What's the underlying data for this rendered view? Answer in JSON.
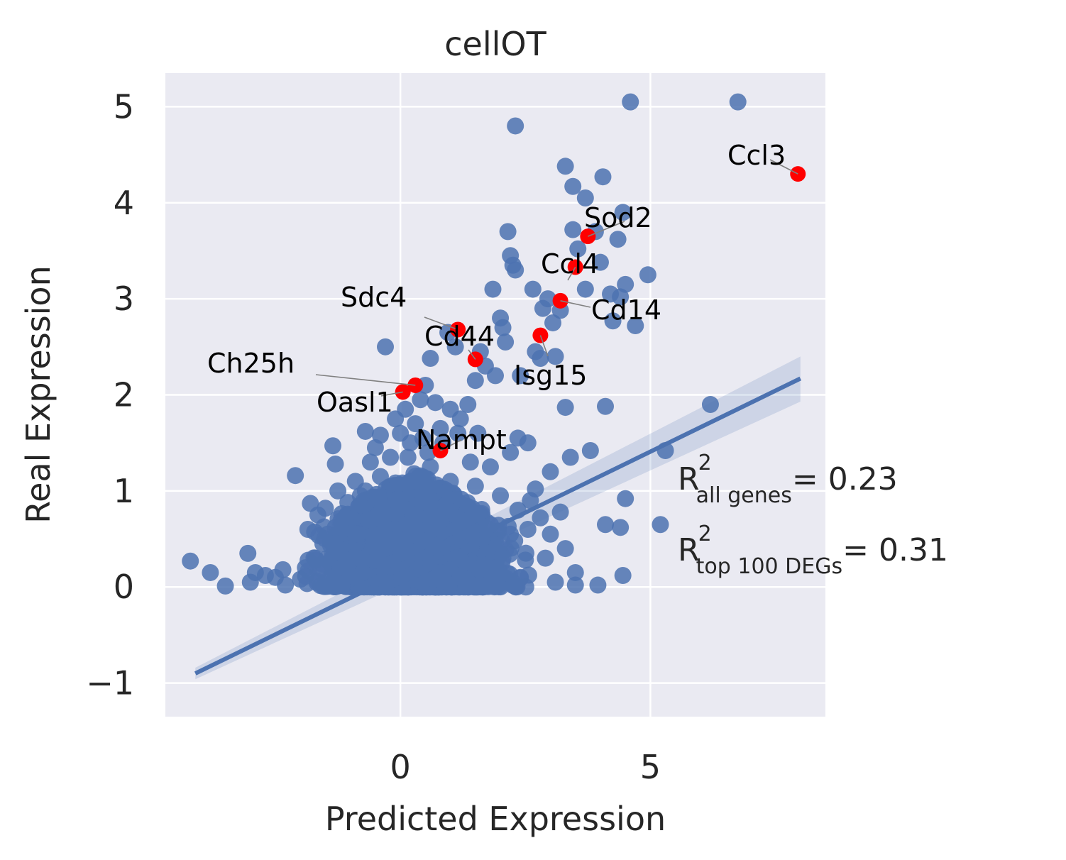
{
  "chart_data": {
    "type": "scatter",
    "title": "cellOT",
    "xlabel": "Predicted Expression",
    "ylabel": "Real Expression",
    "xlim": [
      -4.7,
      8.5
    ],
    "ylim": [
      -1.35,
      5.35
    ],
    "xticks": [
      0,
      5
    ],
    "yticks": [
      -1,
      0,
      1,
      2,
      3,
      4,
      5
    ],
    "xtick_labels": [
      "0",
      "5"
    ],
    "ytick_labels": [
      "−1",
      "0",
      "1",
      "2",
      "3",
      "4",
      "5"
    ],
    "grid": true,
    "colors": {
      "background": "#EAEAF2",
      "grid": "#FFFFFF",
      "points": "#4C72B0",
      "highlight": "#FF0000",
      "arrow": "#808080"
    },
    "regression": {
      "x": [
        -4.1,
        8.0
      ],
      "y": [
        -0.9,
        2.17
      ],
      "ci_upper_end": 2.4,
      "ci_lower_end": 1.93
    },
    "points": [
      [
        -4.2,
        0.27
      ],
      [
        -3.8,
        0.15
      ],
      [
        -3.5,
        0.01
      ],
      [
        -3.05,
        0.35
      ],
      [
        -3.0,
        0.05
      ],
      [
        -2.9,
        0.15
      ],
      [
        -2.7,
        0.12
      ],
      [
        -2.5,
        0.1
      ],
      [
        -2.35,
        0.18
      ],
      [
        -2.3,
        0.02
      ],
      [
        -2.1,
        1.16
      ],
      [
        -2.0,
        0.08
      ],
      [
        -1.9,
        0.2
      ],
      [
        -1.85,
        0.6
      ],
      [
        -1.8,
        0.87
      ],
      [
        -1.7,
        0.3
      ],
      [
        -1.65,
        0.75
      ],
      [
        -1.55,
        0.45
      ],
      [
        -1.5,
        0.82
      ],
      [
        -1.45,
        0.55
      ],
      [
        -1.4,
        0.1
      ],
      [
        -1.35,
        0.3
      ],
      [
        -1.3,
        0.62
      ],
      [
        -1.25,
        1.0
      ],
      [
        -1.3,
        1.28
      ],
      [
        -1.35,
        1.47
      ],
      [
        -1.2,
        0.2
      ],
      [
        -1.15,
        0.38
      ],
      [
        -1.1,
        0.72
      ],
      [
        -1.05,
        0.88
      ],
      [
        -1.0,
        0.12
      ],
      [
        -0.9,
        1.1
      ],
      [
        -0.85,
        0.55
      ],
      [
        -0.9,
        0.32
      ],
      [
        -0.8,
        0.95
      ],
      [
        -0.75,
        0.15
      ],
      [
        -0.7,
        1.62
      ],
      [
        -0.65,
        0.7
      ],
      [
        -0.6,
        1.3
      ],
      [
        -0.55,
        0.42
      ],
      [
        -0.5,
        1.45
      ],
      [
        -0.4,
        1.58
      ],
      [
        -0.35,
        0.8
      ],
      [
        -0.3,
        2.5
      ],
      [
        -0.2,
        1.35
      ],
      [
        -0.15,
        0.25
      ],
      [
        -0.1,
        1.75
      ],
      [
        0.0,
        1.6
      ],
      [
        0.1,
        1.85
      ],
      [
        0.2,
        1.5
      ],
      [
        0.3,
        1.7
      ],
      [
        0.4,
        1.95
      ],
      [
        0.5,
        2.1
      ],
      [
        0.55,
        1.4
      ],
      [
        0.6,
        2.38
      ],
      [
        0.7,
        1.92
      ],
      [
        0.8,
        1.65
      ],
      [
        0.95,
        2.65
      ],
      [
        1.0,
        1.85
      ],
      [
        1.1,
        2.5
      ],
      [
        1.2,
        1.75
      ],
      [
        1.35,
        1.9
      ],
      [
        1.5,
        2.15
      ],
      [
        1.6,
        2.45
      ],
      [
        1.7,
        2.3
      ],
      [
        1.85,
        3.1
      ],
      [
        1.9,
        2.2
      ],
      [
        2.0,
        2.8
      ],
      [
        2.05,
        2.7
      ],
      [
        2.1,
        2.55
      ],
      [
        2.15,
        3.7
      ],
      [
        2.2,
        3.45
      ],
      [
        2.25,
        3.35
      ],
      [
        2.3,
        3.3
      ],
      [
        2.4,
        2.2
      ],
      [
        2.3,
        4.8
      ],
      [
        2.35,
        1.55
      ],
      [
        2.55,
        1.5
      ],
      [
        2.65,
        3.1
      ],
      [
        2.7,
        2.45
      ],
      [
        2.8,
        2.38
      ],
      [
        2.85,
        2.9
      ],
      [
        2.95,
        3.0
      ],
      [
        3.05,
        2.75
      ],
      [
        3.1,
        2.4
      ],
      [
        3.2,
        2.88
      ],
      [
        3.3,
        1.87
      ],
      [
        3.3,
        4.38
      ],
      [
        3.45,
        3.72
      ],
      [
        3.45,
        4.17
      ],
      [
        3.55,
        3.52
      ],
      [
        3.7,
        4.05
      ],
      [
        3.7,
        3.1
      ],
      [
        3.8,
        1.42
      ],
      [
        3.9,
        3.7
      ],
      [
        4.0,
        3.38
      ],
      [
        4.05,
        4.27
      ],
      [
        4.1,
        1.88
      ],
      [
        4.2,
        3.05
      ],
      [
        4.25,
        2.77
      ],
      [
        4.4,
        3.02
      ],
      [
        4.35,
        3.62
      ],
      [
        4.45,
        3.9
      ],
      [
        4.5,
        3.15
      ],
      [
        4.6,
        5.05
      ],
      [
        4.7,
        2.72
      ],
      [
        4.95,
        3.25
      ],
      [
        4.5,
        0.92
      ],
      [
        4.4,
        0.62
      ],
      [
        4.1,
        0.65
      ],
      [
        3.95,
        0.02
      ],
      [
        3.5,
        0.02
      ],
      [
        3.5,
        0.15
      ],
      [
        3.3,
        0.4
      ],
      [
        3.2,
        0.78
      ],
      [
        3.0,
        0.55
      ],
      [
        2.8,
        0.72
      ],
      [
        2.7,
        1.02
      ],
      [
        2.5,
        0.28
      ],
      [
        2.2,
        0.55
      ],
      [
        2.0,
        0.95
      ],
      [
        1.8,
        1.25
      ],
      [
        1.5,
        1.05
      ],
      [
        1.3,
        0.58
      ],
      [
        1.1,
        0.3
      ],
      [
        0.9,
        0.85
      ],
      [
        0.7,
        0.42
      ],
      [
        0.5,
        0.95
      ],
      [
        0.3,
        0.6
      ],
      [
        0.1,
        0.2
      ],
      [
        -0.1,
        0.9
      ],
      [
        -0.3,
        0.45
      ],
      [
        -0.5,
        0.1
      ],
      [
        0.2,
        1.1
      ],
      [
        0.6,
        1.25
      ],
      [
        1.0,
        1.1
      ],
      [
        1.4,
        1.3
      ],
      [
        1.8,
        0.65
      ],
      [
        2.6,
        0.9
      ],
      [
        3.0,
        1.2
      ],
      [
        3.4,
        1.35
      ],
      [
        3.1,
        0.05
      ],
      [
        2.9,
        0.3
      ],
      [
        2.4,
        0.1
      ],
      [
        1.9,
        0.05
      ],
      [
        5.2,
        0.65
      ],
      [
        5.3,
        1.42
      ],
      [
        6.2,
        1.9
      ],
      [
        6.75,
        5.05
      ],
      [
        4.45,
        0.12
      ],
      [
        0.4,
        0.2
      ],
      [
        0.8,
        0.15
      ],
      [
        1.2,
        0.1
      ],
      [
        1.6,
        0.2
      ],
      [
        -0.2,
        0.05
      ],
      [
        0.0,
        0.35
      ],
      [
        0.25,
        0.75
      ],
      [
        0.65,
        0.6
      ],
      [
        1.05,
        0.45
      ],
      [
        1.45,
        0.75
      ],
      [
        1.75,
        0.4
      ],
      [
        2.05,
        0.3
      ],
      [
        2.35,
        0.8
      ],
      [
        2.55,
        0.6
      ],
      [
        -0.6,
        0.7
      ],
      [
        -0.9,
        0.55
      ],
      [
        -1.1,
        0.25
      ],
      [
        0.15,
        1.35
      ],
      [
        0.45,
        1.55
      ],
      [
        0.85,
        1.5
      ],
      [
        1.15,
        1.6
      ],
      [
        1.55,
        1.6
      ],
      [
        -0.4,
        1.15
      ],
      [
        -0.7,
        1.0
      ],
      [
        2.2,
        1.4
      ]
    ],
    "cloud": {
      "x_center": 0.3,
      "x_spread": 2.4,
      "y_max": 1.2,
      "count": 2200
    },
    "highlighted": [
      {
        "gene": "Ccl3",
        "x": 7.95,
        "y": 4.3,
        "label": "Ccl3"
      },
      {
        "gene": "Sod2",
        "x": 3.75,
        "y": 3.65,
        "label": "Sod2"
      },
      {
        "gene": "Ccl4",
        "x": 3.5,
        "y": 3.33,
        "label": "Ccl4"
      },
      {
        "gene": "Cd14",
        "x": 3.2,
        "y": 2.98,
        "label": "Cd14"
      },
      {
        "gene": "Sdc4",
        "x": 1.15,
        "y": 2.68,
        "label": "Sdc4"
      },
      {
        "gene": "Isg15",
        "x": 2.8,
        "y": 2.62,
        "label": "Isg15"
      },
      {
        "gene": "Cd44",
        "x": 1.5,
        "y": 2.37,
        "label": "Cd44"
      },
      {
        "gene": "Ch25h",
        "x": 0.3,
        "y": 2.1,
        "label": "Ch25h"
      },
      {
        "gene": "Oasl1",
        "x": 0.05,
        "y": 2.03,
        "label": "Oasl1"
      },
      {
        "gene": "Nampt",
        "x": 0.8,
        "y": 1.42,
        "label": "Nampt"
      }
    ],
    "annotations": [
      {
        "base": "R",
        "sup": "2",
        "sub": "all genes",
        "value_text": "= 0.23"
      },
      {
        "base": "R",
        "sup": "2",
        "sub": "top 100 DEGs",
        "value_text": "= 0.31"
      }
    ]
  }
}
